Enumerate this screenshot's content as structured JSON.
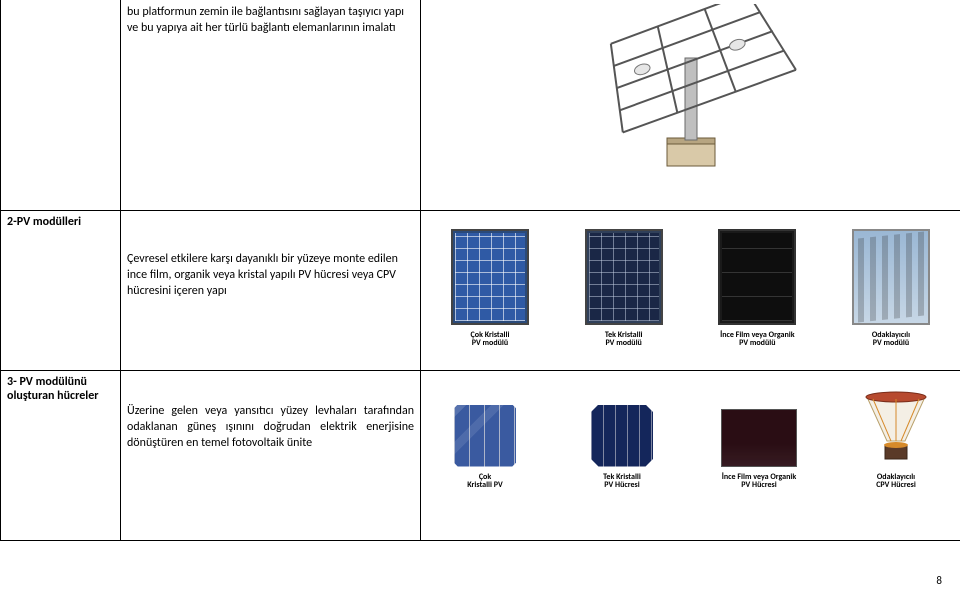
{
  "page_number": "8",
  "colors": {
    "border": "#000000",
    "text": "#000000",
    "background": "#ffffff",
    "module_poly_bg": "#2f5aa5",
    "module_mono_bg": "#1a2746",
    "module_thin_bg": "#0e0e0e",
    "module_cpv_bg": "#c7d7e6",
    "cell_multi": "#3a5aa0",
    "cell_mono": "#14265b",
    "cell_thin": "#2a0d14",
    "cpv_lens": "#b74a2f",
    "cpv_ray": "#d68a2a"
  },
  "table": {
    "rows": [
      {
        "label": "",
        "desc": "bu platformun zemin ile bağlantısını sağlayan taşıyıcı yapı ve bu yapıya ait her türlü bağlantı elemanlarının imalatı"
      },
      {
        "label": "2-PV modülleri",
        "desc": "Çevresel etkilere karşı dayanıklı bir yüzeye monte edilen ince film, organik veya kristal yapılı PV hücresi veya CPV hücresini içeren yapı",
        "modules": [
          {
            "caption": "Çok Kristalli\nPV modülü",
            "style": "blue-grid"
          },
          {
            "caption": "Tek Kristalli\nPV modülü",
            "style": "mono"
          },
          {
            "caption": "İnce Film veya Organik\nPV modülü",
            "style": "thin"
          },
          {
            "caption": "Odaklayıcılı\nPV modülü",
            "style": "cpv"
          }
        ]
      },
      {
        "label": "3- PV modülünü oluşturan hücreler",
        "desc": "Üzerine gelen veya yansıtıcı yüzey levhaları tarafından odaklanan güneş ışınını doğrudan elektrik enerjisine dönüştüren en temel fotovoltaik ünite",
        "cells": [
          {
            "caption": "Çok\nKristalli PV"
          },
          {
            "caption": "Tek Kristalli\nPV Hücresi"
          },
          {
            "caption": "İnce Film veya Organik\nPV Hücresi"
          },
          {
            "caption": "Odaklayıcılı\nCPV Hücresi"
          }
        ]
      }
    ]
  }
}
